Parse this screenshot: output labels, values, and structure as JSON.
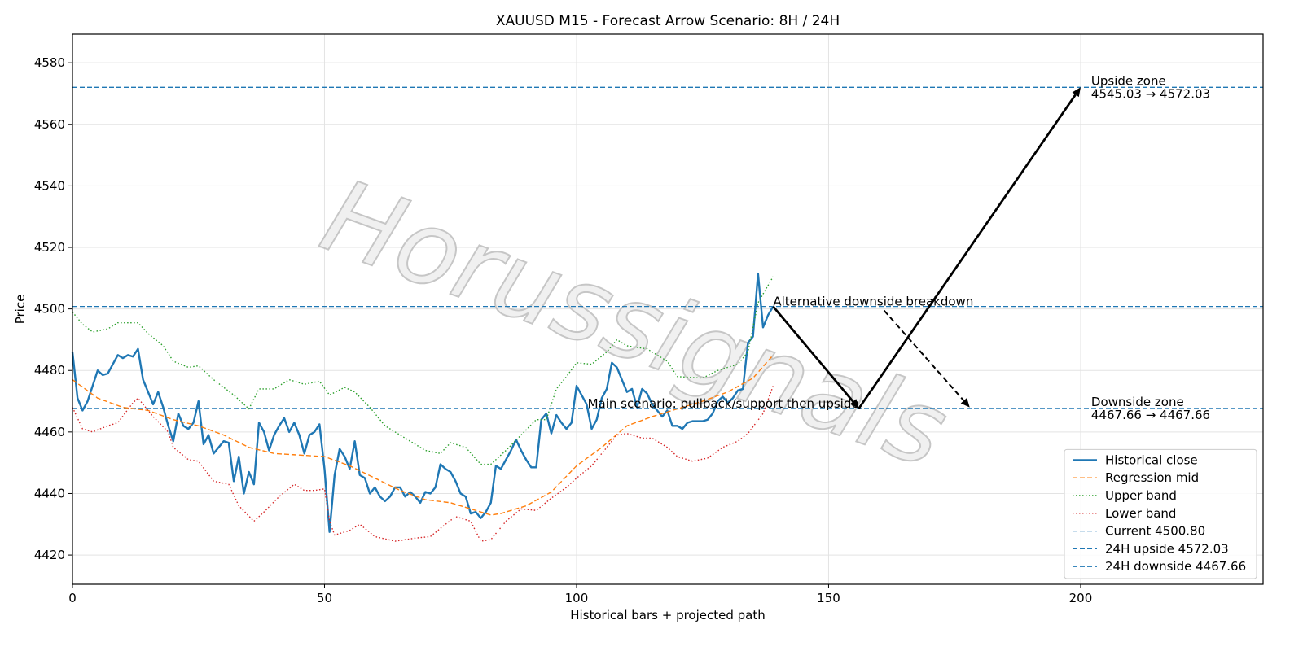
{
  "chart_data": {
    "type": "line",
    "title": "XAUUSD M15 - Forecast Arrow Scenario: 8H / 24H",
    "xlabel": "Historical bars + projected path",
    "ylabel": "Price",
    "watermark": "Horussignals",
    "xlim": [
      0,
      236.2
    ],
    "ylim": [
      4410.5,
      4589.3
    ],
    "xticks": [
      0,
      50,
      100,
      150,
      200
    ],
    "yticks": [
      4420,
      4440,
      4460,
      4480,
      4500,
      4520,
      4540,
      4560,
      4580
    ],
    "grid": true,
    "legend": "lower right",
    "series": [
      {
        "name": "Historical close",
        "color": "#1f77b4",
        "style": "solid",
        "x": [
          0,
          1,
          2,
          3,
          4,
          5,
          6,
          7,
          8,
          9,
          10,
          11,
          12,
          13,
          14,
          15,
          16,
          17,
          18,
          19,
          20,
          21,
          22,
          23,
          24,
          25,
          26,
          27,
          28,
          29,
          30,
          31,
          32,
          33,
          34,
          35,
          36,
          37,
          38,
          39,
          40,
          41,
          42,
          43,
          44,
          45,
          46,
          47,
          48,
          49,
          50,
          51,
          52,
          53,
          54,
          55,
          56,
          57,
          58,
          59,
          60,
          61,
          62,
          63,
          64,
          65,
          66,
          67,
          68,
          69,
          70,
          71,
          72,
          73,
          74,
          75,
          76,
          77,
          78,
          79,
          80,
          81,
          82,
          83,
          84,
          85,
          86,
          87,
          88,
          89,
          90,
          91,
          92,
          93,
          94,
          95,
          96,
          97,
          98,
          99,
          100,
          101,
          102,
          103,
          104,
          105,
          106,
          107,
          108,
          109,
          110,
          111,
          112,
          113,
          114,
          115,
          116,
          117,
          118,
          119,
          120,
          121,
          122,
          123,
          124,
          125,
          126,
          127,
          128,
          129,
          130,
          131,
          132,
          133,
          134,
          135,
          136,
          137,
          138,
          139
        ],
        "values": [
          4486,
          4471,
          4467,
          4470,
          4475,
          4480,
          4478.5,
          4479,
          4482,
          4485,
          4484,
          4485,
          4484.5,
          4487,
          4477,
          4473,
          4469,
          4473,
          4468,
          4462,
          4457,
          4466,
          4462,
          4461,
          4463,
          4470,
          4456,
          4459,
          4453,
          4455,
          4457,
          4456.5,
          4444,
          4452,
          4440,
          4447,
          4443,
          4463,
          4460,
          4454,
          4459,
          4462,
          4464.5,
          4460,
          4463,
          4459,
          4453,
          4459,
          4460,
          4462.5,
          4448,
          4427.5,
          4446,
          4454.5,
          4452,
          4448,
          4457,
          4446,
          4445,
          4440,
          4442,
          4439,
          4437.5,
          4439,
          4442,
          4442,
          4439,
          4440.5,
          4439,
          4437,
          4440.5,
          4440,
          4442,
          4449.5,
          4448,
          4447,
          4444,
          4440,
          4439,
          4433.5,
          4434,
          4432,
          4434,
          4437,
          4449,
          4448,
          4451,
          4454,
          4457.5,
          4454,
          4451,
          4448.5,
          4448.5,
          4464,
          4466,
          4459.5,
          4465.5,
          4463,
          4461,
          4463,
          4475,
          4472,
          4469,
          4461,
          4464,
          4471,
          4474,
          4482.5,
          4481,
          4477,
          4473,
          4474,
          4468,
          4474,
          4472.5,
          4469,
          4467,
          4465,
          4467,
          4462,
          4462,
          4461,
          4463,
          4463.5,
          4463.5,
          4463.5,
          4464,
          4466,
          4470,
          4471.5,
          4469.5,
          4471,
          4473.5,
          4474,
          4489,
          4491,
          4511.5,
          4494,
          4498,
          4500.8
        ]
      },
      {
        "name": "Regression mid",
        "color": "#ff7f0e",
        "style": "dashed",
        "x": [
          0,
          5,
          10,
          15,
          20,
          25,
          30,
          35,
          40,
          45,
          50,
          55,
          60,
          65,
          70,
          75,
          80,
          83,
          85,
          90,
          95,
          100,
          105,
          110,
          115,
          120,
          125,
          130,
          135,
          139
        ],
        "values": [
          4477,
          4471,
          4468,
          4467,
          4464,
          4462,
          4459,
          4455,
          4453,
          4452.5,
          4452,
          4449,
          4445,
          4441,
          4438,
          4437,
          4434.5,
          4433,
          4433.5,
          4436,
          4440.5,
          4449,
          4455,
          4462,
          4465,
          4467.5,
          4470,
          4473,
          4477.5,
          4485
        ]
      },
      {
        "name": "Upper band",
        "color": "#2ca02c",
        "style": "dotted",
        "x": [
          0,
          2,
          4,
          7,
          9,
          13,
          15,
          18,
          20,
          23,
          25,
          28,
          32,
          35,
          37,
          40,
          43,
          46,
          49,
          51,
          54,
          56,
          59,
          62,
          66,
          70,
          73,
          75,
          78,
          81,
          83,
          86,
          89,
          92,
          94,
          96,
          98,
          100,
          103,
          106,
          108,
          110,
          114,
          118,
          120,
          125,
          128,
          132,
          134,
          136,
          139
        ],
        "values": [
          4499,
          4495,
          4492.5,
          4493.5,
          4495.5,
          4495.5,
          4492,
          4488,
          4483,
          4481,
          4481.5,
          4477,
          4472,
          4467.5,
          4474,
          4474,
          4477,
          4475.5,
          4476.5,
          4472,
          4474.5,
          4473,
          4468,
          4462,
          4458,
          4454,
          4453,
          4456.5,
          4455,
          4449.5,
          4449.5,
          4454,
          4459,
          4464,
          4464,
          4474,
          4478,
          4482.5,
          4482,
          4486,
          4490,
          4488,
          4487,
          4483,
          4478,
          4477.5,
          4480,
          4482,
          4486,
          4502,
          4510.5
        ]
      },
      {
        "name": "Lower band",
        "color": "#d62728",
        "style": "dotted",
        "x": [
          0,
          2,
          4,
          7,
          9,
          12,
          13,
          16,
          19,
          20,
          23,
          25,
          28,
          31,
          33,
          36,
          38,
          41,
          44,
          46,
          48,
          50,
          51,
          52,
          55,
          57,
          60,
          64,
          68,
          71,
          74,
          76,
          79,
          81,
          83,
          86,
          89,
          92,
          95,
          98,
          100,
          103,
          106,
          108,
          110,
          113,
          115,
          118,
          120,
          123,
          126,
          129,
          132,
          134,
          137,
          139
        ],
        "values": [
          4468,
          4461,
          4460,
          4462,
          4463,
          4469.5,
          4471,
          4465,
          4460,
          4455,
          4451,
          4450.5,
          4444,
          4443,
          4436,
          4431,
          4434,
          4439,
          4443,
          4441,
          4441,
          4441.5,
          4431,
          4426.5,
          4428,
          4430,
          4426,
          4424.5,
          4425.5,
          4426,
          4430,
          4432.5,
          4431,
          4424.5,
          4425,
          4431,
          4435,
          4434.5,
          4438.5,
          4442,
          4445,
          4449,
          4455,
          4459,
          4459.5,
          4458,
          4458,
          4455,
          4452,
          4450.5,
          4451.5,
          4455,
          4457,
          4459.5,
          4466,
          4475
        ]
      }
    ],
    "hlines": [
      {
        "name": "Current 4500.80",
        "value": 4500.8,
        "color": "#1f77b4"
      },
      {
        "name": "24H upside 4572.03",
        "value": 4572.03,
        "color": "#1f77b4"
      },
      {
        "name": "24H downside 4467.66",
        "value": 4467.66,
        "color": "#1f77b4"
      }
    ],
    "arrows": [
      {
        "x": [
          139,
          156
        ],
        "y": [
          4500.8,
          4467.66
        ],
        "style": "solid"
      },
      {
        "x": [
          156,
          200
        ],
        "y": [
          4467.66,
          4572.03
        ],
        "style": "solid"
      },
      {
        "x": [
          161,
          178
        ],
        "y": [
          4499.5,
          4468
        ],
        "style": "dashed"
      }
    ],
    "annotations": {
      "main": "Main scenario: pullback/support then upside",
      "alternative": "Alternative downside breakdown",
      "upside_zone": [
        "Upside zone",
        "4545.03 → 4572.03"
      ],
      "downside_zone": [
        "Downside zone",
        "4467.66 → 4467.66"
      ]
    }
  }
}
